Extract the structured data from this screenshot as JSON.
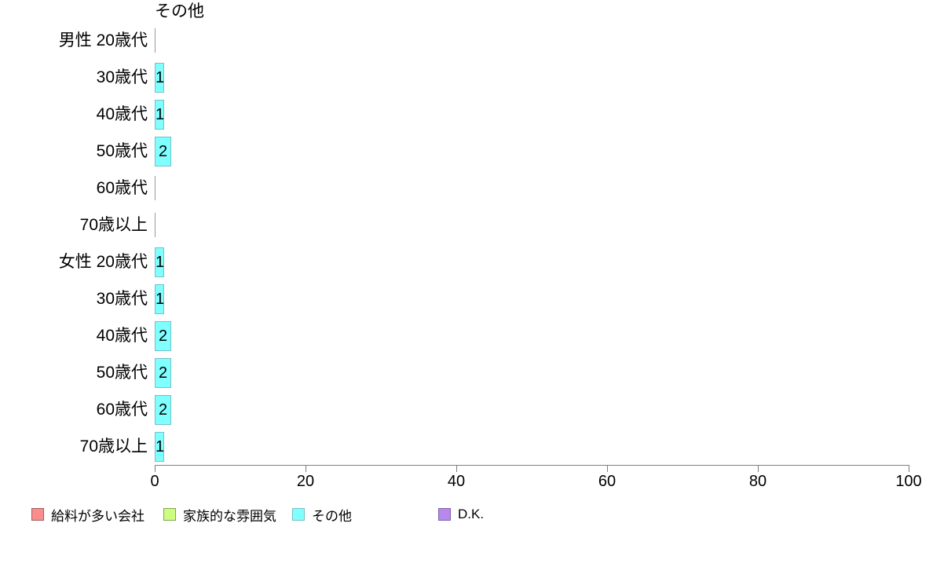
{
  "chart_data": {
    "type": "bar",
    "orientation": "horizontal",
    "title": "その他",
    "rows": [
      {
        "group": "男性",
        "label": "20歳代",
        "value": 0
      },
      {
        "group": "",
        "label": "30歳代",
        "value": 1
      },
      {
        "group": "",
        "label": "40歳代",
        "value": 1
      },
      {
        "group": "",
        "label": "50歳代",
        "value": 2
      },
      {
        "group": "",
        "label": "60歳代",
        "value": 0
      },
      {
        "group": "",
        "label": "70歳以上",
        "value": 0
      },
      {
        "group": "女性",
        "label": "20歳代",
        "value": 1
      },
      {
        "group": "",
        "label": "30歳代",
        "value": 1
      },
      {
        "group": "",
        "label": "40歳代",
        "value": 2
      },
      {
        "group": "",
        "label": "50歳代",
        "value": 2
      },
      {
        "group": "",
        "label": "60歳代",
        "value": 2
      },
      {
        "group": "",
        "label": "70歳以上",
        "value": 1
      }
    ],
    "xlim": [
      0,
      100
    ],
    "xticks": [
      0,
      20,
      40,
      60,
      80,
      100
    ],
    "grid": false,
    "bar_color": "#80ffff",
    "bar_border_color": "#74c0c8",
    "zero_line_color": "#999999",
    "axis_color": "#7f7f7f",
    "value_label_color": "#000000",
    "legend_position": "bottom"
  },
  "legend": {
    "items": [
      {
        "label": "給料が多い会社",
        "color": "#fb8d8d",
        "border": "#a35c5c"
      },
      {
        "label": "家族的な雰囲気",
        "color": "#cdfd7f",
        "border": "#7fa650"
      },
      {
        "label": "その他",
        "color": "#80ffff",
        "border": "#74c0c8"
      },
      {
        "label": "D.K.",
        "color": "#b988ef",
        "border": "#7c62a5"
      }
    ]
  }
}
